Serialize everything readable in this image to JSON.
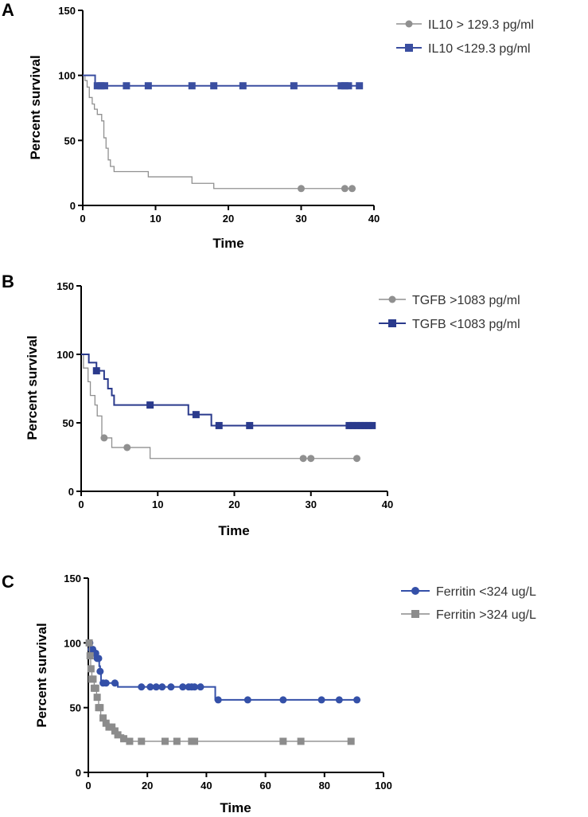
{
  "chart_data": [
    {
      "panel": "A",
      "type": "line",
      "subtype": "kaplan-meier",
      "xlabel": "Time",
      "ylabel": "Percent survival",
      "xlim": [
        0,
        40
      ],
      "ylim": [
        0,
        150
      ],
      "xticks": [
        0,
        10,
        20,
        30,
        40
      ],
      "yticks": [
        0,
        50,
        100,
        150
      ],
      "legend_position": "top-right",
      "series": [
        {
          "name": "IL10 > 129.3 pg/ml",
          "color": "#909090",
          "marker": "circle",
          "steps": [
            [
              0,
              100
            ],
            [
              0.3,
              96
            ],
            [
              0.6,
              91
            ],
            [
              0.9,
              83
            ],
            [
              1.3,
              78
            ],
            [
              1.6,
              74
            ],
            [
              2.0,
              70
            ],
            [
              2.6,
              65
            ],
            [
              2.9,
              52
            ],
            [
              3.2,
              44
            ],
            [
              3.5,
              35
            ],
            [
              3.8,
              30
            ],
            [
              4.3,
              26
            ],
            [
              9,
              22
            ],
            [
              15,
              17
            ],
            [
              18,
              13
            ],
            [
              37,
              13
            ]
          ],
          "censored": [
            30,
            36,
            37
          ]
        },
        {
          "name": "IL10 <129.3 pg/ml",
          "color": "#3a4ea0",
          "marker": "square",
          "steps": [
            [
              0,
              100
            ],
            [
              1.7,
              92
            ],
            [
              38,
              92
            ]
          ],
          "censored": [
            2,
            2.5,
            3,
            6,
            9,
            15,
            18,
            22,
            29,
            35.5,
            36,
            36.5,
            38
          ]
        }
      ]
    },
    {
      "panel": "B",
      "type": "line",
      "subtype": "kaplan-meier",
      "xlabel": "Time",
      "ylabel": "Percent survival",
      "xlim": [
        0,
        40
      ],
      "ylim": [
        0,
        150
      ],
      "xticks": [
        0,
        10,
        20,
        30,
        40
      ],
      "yticks": [
        0,
        50,
        100,
        150
      ],
      "legend_position": "top-right",
      "series": [
        {
          "name": "TGFB >1083 pg/ml",
          "color": "#909090",
          "marker": "circle",
          "steps": [
            [
              0,
              100
            ],
            [
              0.3,
              90
            ],
            [
              0.9,
              80
            ],
            [
              1.2,
              70
            ],
            [
              1.8,
              63
            ],
            [
              2.1,
              55
            ],
            [
              2.7,
              39
            ],
            [
              4,
              32
            ],
            [
              9,
              24
            ],
            [
              36,
              24
            ]
          ],
          "censored": [
            3,
            6,
            29,
            30,
            36
          ]
        },
        {
          "name": "TGFB <1083 pg/ml",
          "color": "#2a3a8c",
          "marker": "square",
          "steps": [
            [
              0,
              100
            ],
            [
              1,
              94
            ],
            [
              2,
              88
            ],
            [
              3,
              82
            ],
            [
              3.5,
              75
            ],
            [
              4,
              70
            ],
            [
              4.3,
              63
            ],
            [
              14,
              56
            ],
            [
              17,
              48
            ],
            [
              38,
              48
            ]
          ],
          "censored": [
            2,
            9,
            15,
            18,
            22,
            35,
            35.5,
            36,
            36.5,
            37,
            37.5,
            38
          ]
        }
      ]
    },
    {
      "panel": "C",
      "type": "line",
      "subtype": "kaplan-meier",
      "xlabel": "Time",
      "ylabel": "Percent survival",
      "xlim": [
        0,
        100
      ],
      "ylim": [
        0,
        150
      ],
      "xticks": [
        0,
        20,
        40,
        60,
        80,
        100
      ],
      "yticks": [
        0,
        50,
        100,
        150
      ],
      "legend_position": "top-right",
      "series": [
        {
          "name": "Ferritin <324 ug/L",
          "color": "#3450a8",
          "marker": "circle",
          "steps": [
            [
              0,
              100
            ],
            [
              1,
              95
            ],
            [
              2,
              92
            ],
            [
              3,
              88
            ],
            [
              3.7,
              82
            ],
            [
              4,
              78
            ],
            [
              4.3,
              69
            ],
            [
              8,
              69
            ],
            [
              10,
              66
            ],
            [
              43,
              56
            ],
            [
              91,
              56
            ]
          ],
          "censored": [
            0.5,
            1,
            1.5,
            2,
            2.5,
            3,
            3.5,
            4,
            5,
            6,
            9,
            18,
            21,
            23,
            25,
            28,
            32,
            34,
            35,
            36,
            38,
            44,
            54,
            66,
            79,
            85,
            91
          ]
        },
        {
          "name": "Ferritin >324 ug/L",
          "color": "#8c8c8c",
          "marker": "square",
          "steps": [
            [
              0,
              100
            ],
            [
              0.4,
              90
            ],
            [
              0.8,
              80
            ],
            [
              1.2,
              72
            ],
            [
              2,
              65
            ],
            [
              2.8,
              58
            ],
            [
              3.5,
              50
            ],
            [
              4.2,
              42
            ],
            [
              5.5,
              38
            ],
            [
              7,
              35
            ],
            [
              8.5,
              32
            ],
            [
              10,
              29
            ],
            [
              12,
              26
            ],
            [
              14,
              24
            ],
            [
              89,
              24
            ]
          ],
          "censored": [
            0.3,
            0.6,
            0.9,
            1.2,
            1.6,
            2,
            2.5,
            3,
            3.5,
            4,
            5,
            6,
            7,
            8,
            9,
            10,
            12,
            14,
            18,
            26,
            30,
            35,
            36,
            66,
            72,
            89
          ]
        }
      ]
    }
  ]
}
